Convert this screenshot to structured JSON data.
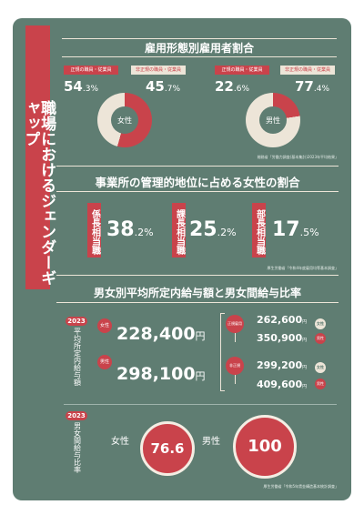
{
  "main_title": "職場におけるジェンダーギャップ",
  "section1": {
    "heading": "雇用形態別雇用者割合",
    "female": {
      "label": "女性",
      "regular_label": "正規の職員・従業員",
      "nonregular_label": "非正規の職員・従業員",
      "regular_int": "54",
      "regular_dec": ".3",
      "regular_unit": "%",
      "nonregular_int": "45",
      "nonregular_dec": ".7",
      "nonregular_unit": "%",
      "regular_share": 0.543
    },
    "male": {
      "label": "男性",
      "regular_label": "正規の職員・従業員",
      "nonregular_label": "非正規の職員・従業員",
      "regular_int": "22",
      "regular_dec": ".6",
      "regular_unit": "%",
      "nonregular_int": "77",
      "nonregular_dec": ".4",
      "nonregular_unit": "%",
      "regular_share": 0.226
    },
    "source": "総務省「労働力調査(基本集計)2023年平均結果」"
  },
  "section2": {
    "heading": "事業所の管理的地位に占める女性の割合",
    "items": [
      {
        "title": "係長相当職",
        "int": "38",
        "dec": ".2",
        "unit": "%"
      },
      {
        "title": "課長相当職",
        "int": "25",
        "dec": ".2",
        "unit": "%"
      },
      {
        "title": "部長相当職",
        "int": "17",
        "dec": ".5",
        "unit": "%"
      }
    ],
    "source": "厚生労働省「令和4年度雇用均等基本調査」"
  },
  "section3": {
    "heading": "男女別平均所定内給与額と男女間給与比率",
    "salary": {
      "year": "2023",
      "vertical_label": "平均所定内給与額",
      "female_tag": "女性",
      "male_tag": "男性",
      "female_value": "228,400",
      "male_value": "298,100",
      "unit": "円",
      "breakdown": [
        {
          "tag": "正規雇用",
          "values": [
            "262,600",
            "350,900"
          ],
          "side_tags": [
            "女性",
            "男性"
          ]
        },
        {
          "tag": "非正規",
          "values": [
            "299,200",
            "409,600"
          ],
          "side_tags": [
            "女性",
            "男性"
          ]
        }
      ]
    },
    "ratio": {
      "year": "2023",
      "vertical_label": "男女間給与比率",
      "female_label": "女性",
      "female_value": "76.6",
      "male_label": "男性",
      "male_value": "100"
    },
    "source": "厚生労働省「令和5年賃金構造基本統計調査」"
  },
  "colors": {
    "background": "#5f7d72",
    "accent": "#c9434b",
    "cream": "#ede5d8",
    "page": "#ffffff"
  }
}
